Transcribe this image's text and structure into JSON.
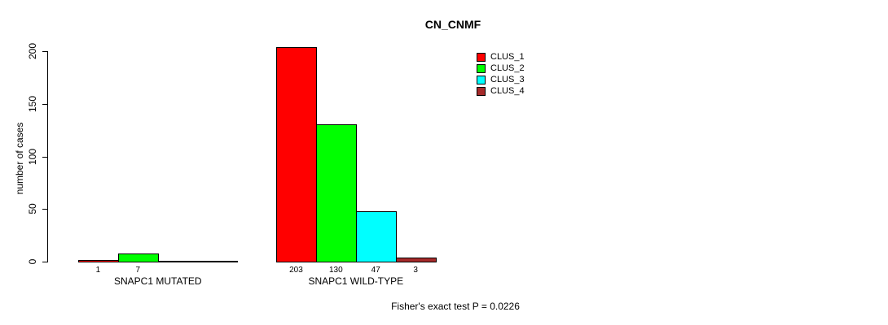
{
  "page": {
    "background_color": "#ffffff",
    "text_color": "#000000"
  },
  "chart_data": {
    "type": "bar",
    "title": "CN_CNMF",
    "xlabel": "",
    "ylabel": "number of cases",
    "ylim": [
      0,
      200
    ],
    "yticks": [
      0,
      50,
      100,
      150,
      200
    ],
    "grid": false,
    "legend_position": "top-right",
    "bar_outline_color": "#000000",
    "categories": [
      "SNAPC1 MUTATED",
      "SNAPC1 WILD-TYPE"
    ],
    "series": [
      {
        "name": "CLUS_1",
        "color": "#FF0000",
        "values": [
          1,
          203
        ]
      },
      {
        "name": "CLUS_2",
        "color": "#00FF00",
        "values": [
          7,
          130
        ]
      },
      {
        "name": "CLUS_3",
        "color": "#00FFFF",
        "values": [
          0,
          47
        ]
      },
      {
        "name": "CLUS_4",
        "color": "#A52A2A",
        "values": [
          0,
          3
        ]
      }
    ],
    "value_labels": {
      "SNAPC1 MUTATED": [
        "1",
        "7",
        "",
        ""
      ],
      "SNAPC1 WILD-TYPE": [
        "203",
        "130",
        "47",
        "3"
      ]
    },
    "annotation": "Fisher's exact test P = 0.0226"
  }
}
